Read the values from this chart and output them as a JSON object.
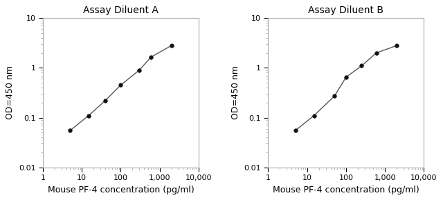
{
  "title_A": "Assay Diluent A",
  "title_B": "Assay Diluent B",
  "xlabel": "Mouse PF-4 concentration (pg/ml)",
  "ylabel": "OD=450 nm",
  "xlim": [
    1,
    10000
  ],
  "ylim": [
    0.01,
    10
  ],
  "x_A": [
    5,
    15,
    40,
    100,
    300,
    600,
    2000
  ],
  "y_A": [
    0.055,
    0.11,
    0.22,
    0.45,
    0.9,
    1.65,
    2.8
  ],
  "x_B": [
    5,
    15,
    50,
    100,
    250,
    600,
    2000
  ],
  "y_B": [
    0.055,
    0.11,
    0.27,
    0.65,
    1.1,
    2.0,
    2.8
  ],
  "line_color": "#555555",
  "marker_color": "#111111",
  "text_color": "#000000",
  "spine_color": "#aaaaaa",
  "background_color": "#ffffff",
  "title_fontsize": 10,
  "label_fontsize": 9,
  "tick_fontsize": 8
}
